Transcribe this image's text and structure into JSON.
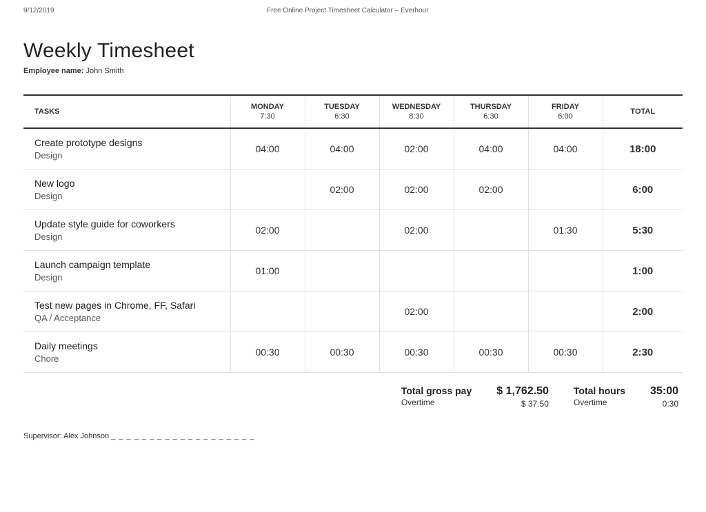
{
  "page_header": {
    "date": "9/12/2019",
    "doc_title": "Free Online Project Timesheet Calculator – Everhour"
  },
  "title": "Weekly Timesheet",
  "employee": {
    "label": "Employee name:",
    "name": "John Smith"
  },
  "table": {
    "tasks_header": "TASKS",
    "total_header": "TOTAL",
    "days": [
      {
        "name": "MONDAY",
        "dur": "7:30"
      },
      {
        "name": "TUESDAY",
        "dur": "6:30"
      },
      {
        "name": "WEDNESDAY",
        "dur": "8:30"
      },
      {
        "name": "THURSDAY",
        "dur": "6:30"
      },
      {
        "name": "FRIDAY",
        "dur": "6:00"
      }
    ],
    "rows": [
      {
        "task": "Create prototype designs",
        "category": "Design",
        "cells": [
          "04:00",
          "04:00",
          "02:00",
          "04:00",
          "04:00"
        ],
        "total": "18:00"
      },
      {
        "task": "New logo",
        "category": "Design",
        "cells": [
          "",
          "02:00",
          "02:00",
          "02:00",
          ""
        ],
        "total": "6:00"
      },
      {
        "task": "Update style guide for coworkers",
        "category": "Design",
        "cells": [
          "02:00",
          "",
          "02:00",
          "",
          "01:30"
        ],
        "total": "5:30"
      },
      {
        "task": "Launch campaign template",
        "category": "Design",
        "cells": [
          "01:00",
          "",
          "",
          "",
          ""
        ],
        "total": "1:00"
      },
      {
        "task": "Test new pages in Chrome, FF, Safari",
        "category": "QA / Acceptance",
        "cells": [
          "",
          "",
          "02:00",
          "",
          ""
        ],
        "total": "2:00"
      },
      {
        "task": "Daily meetings",
        "category": "Chore",
        "cells": [
          "00:30",
          "00:30",
          "00:30",
          "00:30",
          "00:30"
        ],
        "total": "2:30"
      }
    ]
  },
  "summary": {
    "gross_label": "Total gross pay",
    "overtime_label": "Overtime",
    "gross_value": "$ 1,762.50",
    "gross_overtime_value": "$ 37.50",
    "hours_label": "Total hours",
    "hours_value": "35:00",
    "hours_overtime_value": "0:30"
  },
  "supervisor": {
    "label": "Supervisor:",
    "name": "Alex Johnson",
    "line": "_ _ _ _ _ _ _ _ _ _ _ _ _ _ _ _ _ _ _"
  }
}
